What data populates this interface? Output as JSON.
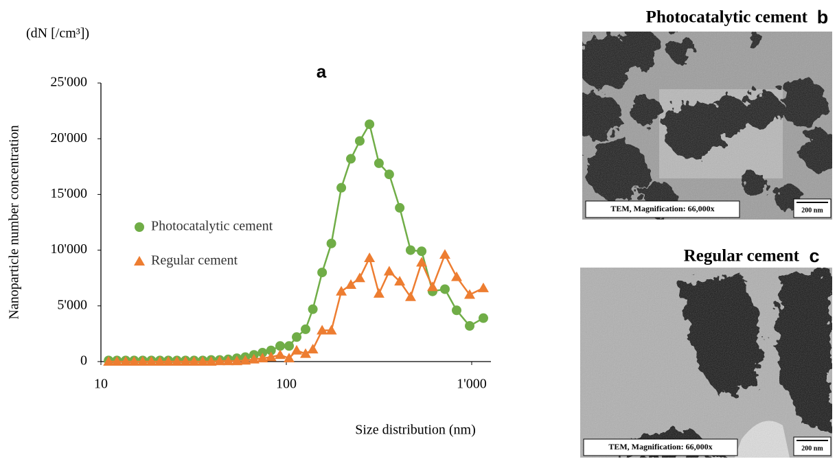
{
  "chart_data": {
    "type": "line",
    "panel_label": "a",
    "y_unit": "(dN [/cm³])",
    "ylabel": "Nanoparticle number concentration",
    "xlabel": "Size distribution (nm)",
    "log_x": true,
    "xlim": [
      10,
      1270
    ],
    "xticks": [
      10,
      100,
      {
        "value": 1000,
        "label": "1'000"
      }
    ],
    "ylim": [
      0,
      25000
    ],
    "yticks": [
      0,
      {
        "value": 5000,
        "label": "5'000"
      },
      {
        "value": 10000,
        "label": "10'000"
      },
      {
        "value": 15000,
        "label": "15'000"
      },
      {
        "value": 20000,
        "label": "20'000"
      },
      {
        "value": 25000,
        "label": "25'000"
      }
    ],
    "grid": false,
    "legend": "center-left",
    "x": [
      11,
      12.2,
      13.6,
      15.1,
      16.8,
      18.7,
      20.8,
      23.1,
      25.7,
      28.6,
      31.8,
      35.4,
      39.3,
      43.7,
      48.6,
      54.1,
      60.1,
      66.9,
      74.4,
      82.7,
      92.6,
      103.5,
      113.7,
      127,
      139,
      156,
      175,
      198,
      223,
      249,
      281,
      316,
      359,
      409,
      468,
      537,
      615,
      717,
      829,
      975,
      1156
    ],
    "series": [
      {
        "name": "Photocatalytic cement",
        "color": "#70ad47",
        "marker": "circle",
        "values": [
          100,
          100,
          100,
          100,
          100,
          100,
          100,
          100,
          100,
          100,
          100,
          100,
          150,
          150,
          200,
          300,
          400,
          600,
          800,
          1000,
          1400,
          1400,
          2200,
          2900,
          4700,
          8000,
          10600,
          15600,
          18200,
          19800,
          21300,
          17800,
          16800,
          13800,
          10000,
          9900,
          6300,
          6500,
          4600,
          3200,
          3900
        ]
      },
      {
        "name": "Regular cement",
        "color": "#ed7d31",
        "marker": "triangle",
        "values": [
          0,
          0,
          0,
          0,
          0,
          0,
          0,
          0,
          0,
          0,
          0,
          0,
          0,
          50,
          50,
          50,
          100,
          200,
          300,
          400,
          600,
          300,
          1000,
          700,
          1100,
          2800,
          2800,
          6300,
          6900,
          7500,
          9300,
          6100,
          8100,
          7200,
          5800,
          8900,
          6700,
          9600,
          7600,
          6000,
          6600
        ]
      }
    ]
  },
  "panels": [
    {
      "title": "Photocatalytic cement",
      "letter": "b",
      "caption": "TEM, Magnification: 66,000x",
      "scale_bar": "200 nm"
    },
    {
      "title": "Regular cement",
      "letter": "c",
      "caption": "TEM, Magnification: 66,000x",
      "scale_bar": "200 nm"
    }
  ]
}
